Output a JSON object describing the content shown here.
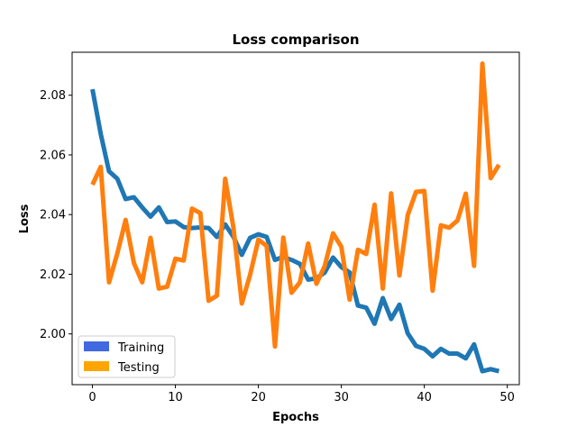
{
  "chart_data": {
    "type": "line",
    "title": "Loss comparison",
    "xlabel": "Epochs",
    "ylabel": "Loss",
    "xlim": [
      -2.45,
      51.45
    ],
    "ylim": [
      1.983,
      2.0944
    ],
    "xticks": [
      0,
      10,
      20,
      30,
      40,
      50
    ],
    "yticks": [
      2.0,
      2.02,
      2.04,
      2.06,
      2.08
    ],
    "ytick_labels": [
      "2.00",
      "2.02",
      "2.04",
      "2.06",
      "2.08"
    ],
    "grid": false,
    "legend_position": "lower-left",
    "x": [
      0,
      1,
      2,
      3,
      4,
      5,
      6,
      7,
      8,
      9,
      10,
      11,
      12,
      13,
      14,
      15,
      16,
      17,
      18,
      19,
      20,
      21,
      22,
      23,
      24,
      25,
      26,
      27,
      28,
      29,
      30,
      31,
      32,
      33,
      34,
      35,
      36,
      37,
      38,
      39,
      40,
      41,
      42,
      43,
      44,
      45,
      46,
      47,
      48,
      49
    ],
    "series": [
      {
        "name": "Training",
        "color": "#1f77b4",
        "legend_color": "#4169e1",
        "values": [
          2.082,
          2.067,
          2.0545,
          2.052,
          2.0452,
          2.0458,
          2.0424,
          2.0393,
          2.0424,
          2.0375,
          2.0377,
          2.0358,
          2.0355,
          2.0357,
          2.0355,
          2.0325,
          2.0367,
          2.0325,
          2.0265,
          2.0322,
          2.0334,
          2.0325,
          2.0248,
          2.0258,
          2.0248,
          2.0235,
          2.0182,
          2.0186,
          2.0206,
          2.0256,
          2.0224,
          2.0206,
          2.0095,
          2.0088,
          2.0034,
          2.012,
          2.005,
          2.0098,
          2.0002,
          1.996,
          1.995,
          1.9925,
          1.995,
          1.9934,
          1.9934,
          1.9918,
          1.9965,
          1.9875,
          1.9882,
          1.9875
        ]
      },
      {
        "name": "Testing",
        "color": "#ff7f0e",
        "legend_color": "#ffa500",
        "values": [
          2.05,
          2.056,
          2.0173,
          2.027,
          2.0382,
          2.0237,
          2.0173,
          2.0322,
          2.0152,
          2.0158,
          2.0252,
          2.0246,
          2.042,
          2.0405,
          2.0111,
          2.0128,
          2.052,
          2.0355,
          2.0102,
          2.0198,
          2.0316,
          2.0295,
          1.9958,
          2.0323,
          2.0138,
          2.0173,
          2.0303,
          2.0168,
          2.0228,
          2.0337,
          2.0292,
          2.0115,
          2.0282,
          2.0268,
          2.0433,
          2.0152,
          2.0471,
          2.0196,
          2.0398,
          2.0476,
          2.0479,
          2.0145,
          2.0364,
          2.0356,
          2.038,
          2.047,
          2.0228,
          2.0906,
          2.0522,
          2.0567
        ]
      }
    ]
  }
}
